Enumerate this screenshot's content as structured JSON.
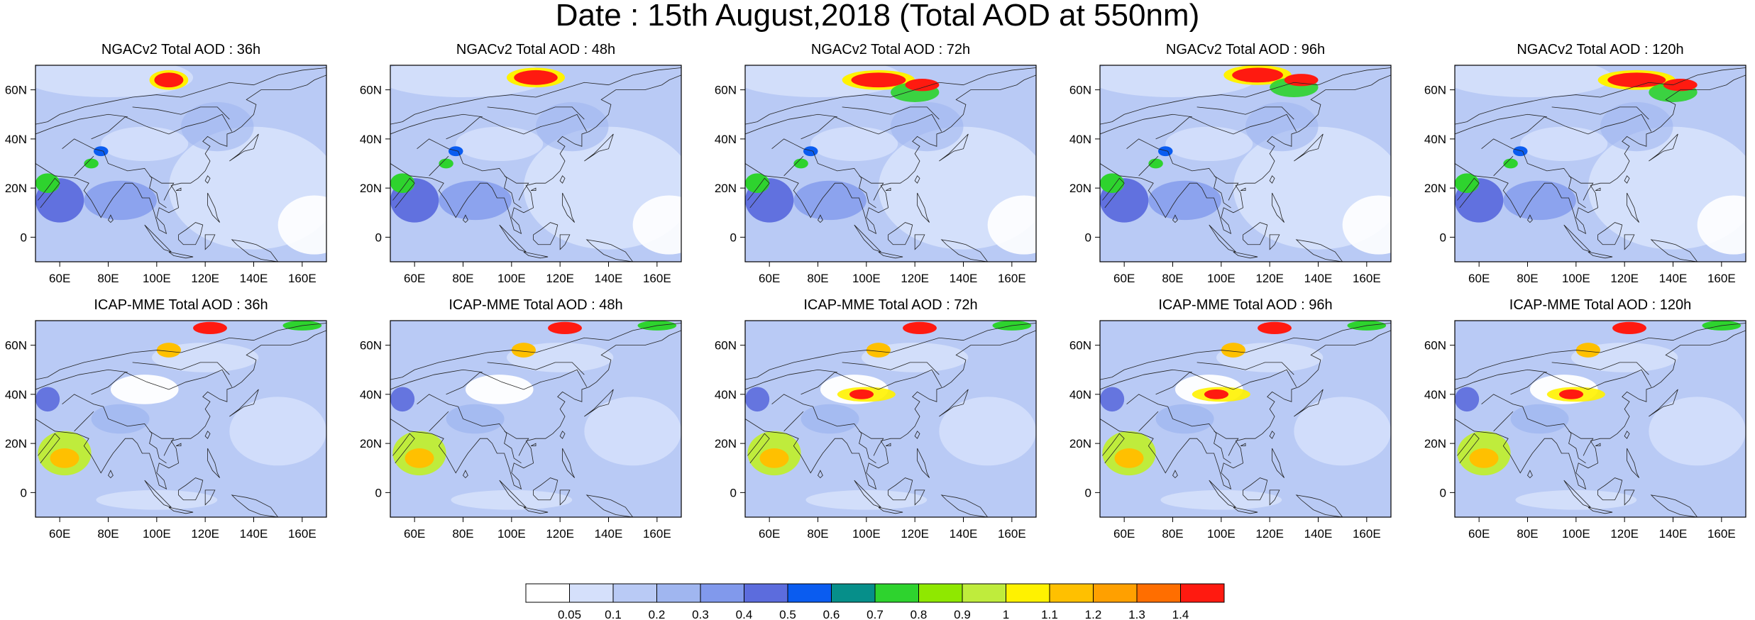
{
  "header": {
    "title": "Date : 15th August,2018 (Total AOD at 550nm)"
  },
  "axes": {
    "lon_ticks": [
      "60E",
      "80E",
      "100E",
      "120E",
      "140E",
      "160E"
    ],
    "lat_ticks": [
      "60N",
      "40N",
      "20N",
      "0"
    ],
    "lon_values": [
      60,
      80,
      100,
      120,
      140,
      160
    ],
    "lat_values": [
      60,
      40,
      20,
      0
    ],
    "lon_range": [
      50,
      170
    ],
    "lat_range": [
      -10,
      70
    ]
  },
  "panels": [
    {
      "title": "NGACv2 Total AOD : 36h",
      "model": "NGACv2",
      "lead": "36h"
    },
    {
      "title": "NGACv2 Total AOD : 48h",
      "model": "NGACv2",
      "lead": "48h"
    },
    {
      "title": "NGACv2 Total AOD : 72h",
      "model": "NGACv2",
      "lead": "72h"
    },
    {
      "title": "NGACv2 Total AOD : 96h",
      "model": "NGACv2",
      "lead": "96h"
    },
    {
      "title": "NGACv2 Total AOD : 120h",
      "model": "NGACv2",
      "lead": "120h"
    },
    {
      "title": "ICAP-MME Total AOD : 36h",
      "model": "ICAP-MME",
      "lead": "36h"
    },
    {
      "title": "ICAP-MME Total AOD : 48h",
      "model": "ICAP-MME",
      "lead": "48h"
    },
    {
      "title": "ICAP-MME Total AOD : 72h",
      "model": "ICAP-MME",
      "lead": "72h"
    },
    {
      "title": "ICAP-MME Total AOD : 96h",
      "model": "ICAP-MME",
      "lead": "96h"
    },
    {
      "title": "ICAP-MME Total AOD : 120h",
      "model": "ICAP-MME",
      "lead": "120h"
    }
  ],
  "colorbar": {
    "labels": [
      "0.05",
      "0.1",
      "0.2",
      "0.3",
      "0.4",
      "0.5",
      "0.6",
      "0.7",
      "0.8",
      "0.9",
      "1",
      "1.1",
      "1.2",
      "1.3",
      "1.4"
    ],
    "colors": [
      "#ffffff",
      "#d5e0fb",
      "#b9caf5",
      "#a0b6f0",
      "#8199ec",
      "#5c6cdd",
      "#0a5cf0",
      "#068f8a",
      "#2ed32e",
      "#8fe800",
      "#bfec3c",
      "#fff200",
      "#ffc000",
      "#ffa000",
      "#ff6e00",
      "#ff1a10"
    ]
  }
}
